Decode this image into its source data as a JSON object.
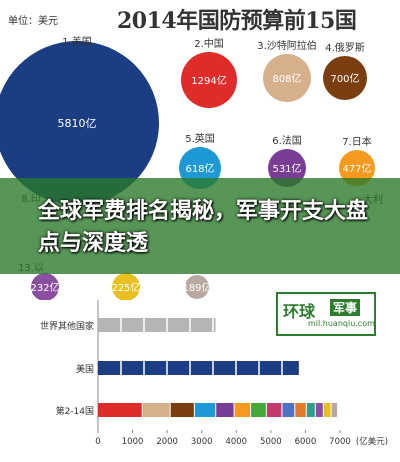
{
  "header": {
    "unit_label": "单位：美元",
    "title": "2014年国防预算前15国"
  },
  "banner": {
    "text": "全球军费排名揭秘，军事开支大盘点与深度透"
  },
  "logo": {
    "main_text": "环球",
    "tag_text": "军事",
    "url": "mil.huanqiu.com"
  },
  "chart_data": [
    {
      "type": "bubble",
      "items": [
        {
          "rank": "1",
          "name": "美国",
          "label": "5810亿",
          "value": 5810,
          "color": "#1b3d84",
          "text_color": "#ffffff"
        },
        {
          "rank": "2",
          "name": "中国",
          "label": "1294亿",
          "value": 1294,
          "color": "#e02b2b",
          "text_color": "#ffffff"
        },
        {
          "rank": "3",
          "name": "沙特阿拉伯",
          "label": "808亿",
          "value": 808,
          "color": "#d6b08a",
          "text_color": "#ffffff"
        },
        {
          "rank": "4",
          "name": "俄罗斯",
          "label": "700亿",
          "value": 700,
          "color": "#7a3e10",
          "text_color": "#ffffff"
        },
        {
          "rank": "5",
          "name": "英国",
          "label": "618亿",
          "value": 618,
          "color": "#1d9ad6",
          "text_color": "#ffffff"
        },
        {
          "rank": "6",
          "name": "法国",
          "label": "531亿",
          "value": 531,
          "color": "#7a3d96",
          "text_color": "#ffffff"
        },
        {
          "rank": "7",
          "name": "日本",
          "label": "477亿",
          "value": 477,
          "color": "#f59a1e",
          "text_color": "#ffffff"
        },
        {
          "rank": "",
          "name": "",
          "label": "232亿",
          "value": 232,
          "color": "#8a4fa0",
          "text_color": "#ffffff"
        },
        {
          "rank": "",
          "name": "",
          "label": "225亿",
          "value": 225,
          "color": "#e8c020",
          "text_color": "#ffffff"
        },
        {
          "rank": "",
          "name": "",
          "label": "189亿",
          "value": 189,
          "color": "#b8a8a0",
          "text_color": "#ffffff"
        }
      ],
      "partial_labels": [
        "8.印",
        "13.以",
        "大利"
      ]
    },
    {
      "type": "bar",
      "orientation": "horizontal",
      "categories": [
        "世界其他国家",
        "美国",
        "第2-14国"
      ],
      "series": [
        {
          "values": [
            3400,
            5810,
            6950
          ]
        }
      ],
      "segments_2_14": [
        1294,
        808,
        700,
        618,
        531,
        477,
        456,
        451,
        372,
        331,
        262,
        232,
        225,
        189
      ],
      "segment_colors": [
        "#e02b2b",
        "#d6b08a",
        "#7a3e10",
        "#1d9ad6",
        "#7a3d96",
        "#f59a1e",
        "#46a83a",
        "#c23a6e",
        "#4f73c4",
        "#e07b2b",
        "#2e9e8e",
        "#8a4fa0",
        "#e8c020",
        "#b8a8a0"
      ],
      "bar_colors": [
        "#b5b5b5",
        "#1b3d84",
        "multi"
      ],
      "x_ticks": [
        "0",
        "1000",
        "2000",
        "3000",
        "4000",
        "5000",
        "6000",
        "7000"
      ],
      "x_unit": "(亿美元)",
      "xlim": [
        0,
        7000
      ]
    }
  ]
}
